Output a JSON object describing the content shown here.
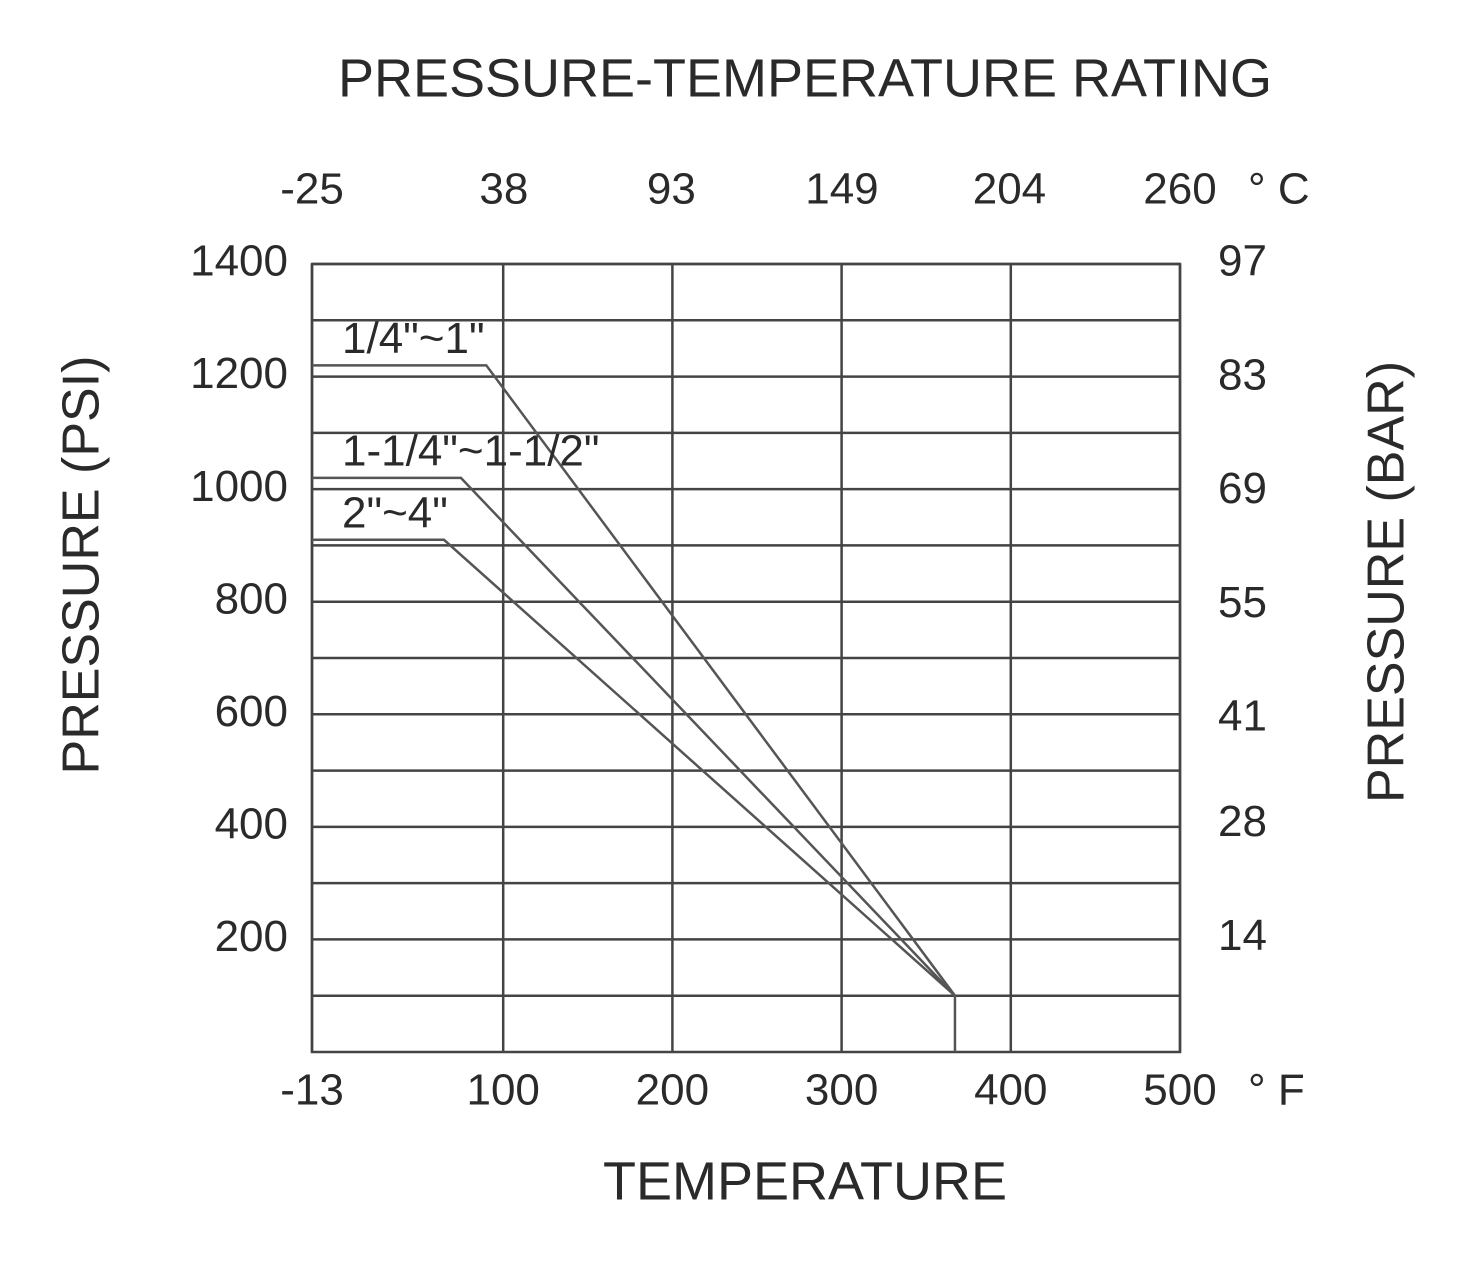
{
  "chart_data": {
    "type": "line",
    "title": "PRESSURE-TEMPERATURE RATING",
    "x_label": "TEMPERATURE",
    "y_label": "PRESSURE (PSI)",
    "y2_label": "PRESSURE (BAR)",
    "x_unit": "° F",
    "x2_unit": "° C",
    "xlim": [
      -13,
      500
    ],
    "xticks": [
      -13,
      100,
      200,
      300,
      400,
      500
    ],
    "x2lim": [
      -25,
      260
    ],
    "x2ticks": [
      -25,
      38,
      93,
      149,
      204,
      260
    ],
    "ylim": [
      0,
      1400
    ],
    "yticks": [
      200,
      400,
      600,
      800,
      1000,
      1200,
      1400
    ],
    "yminorticks": [
      100,
      300,
      500,
      700,
      900,
      1100,
      1300
    ],
    "y2lim": [
      0,
      97
    ],
    "y2ticks": [
      14,
      28,
      41,
      55,
      69,
      83,
      97
    ],
    "grid": true,
    "series": [
      {
        "name": "1/4\"~1\"",
        "color": "#555555",
        "x": [
          -13,
          90,
          367,
          367
        ],
        "values": [
          1220,
          1220,
          100,
          0
        ]
      },
      {
        "name": "1-1/4\"~1-1/2\"",
        "color": "#555555",
        "x": [
          -13,
          75,
          367
        ],
        "values": [
          1020,
          1020,
          100
        ]
      },
      {
        "name": "2\"~4\"",
        "color": "#555555",
        "x": [
          -13,
          65,
          367
        ],
        "values": [
          910,
          910,
          100
        ]
      }
    ]
  }
}
